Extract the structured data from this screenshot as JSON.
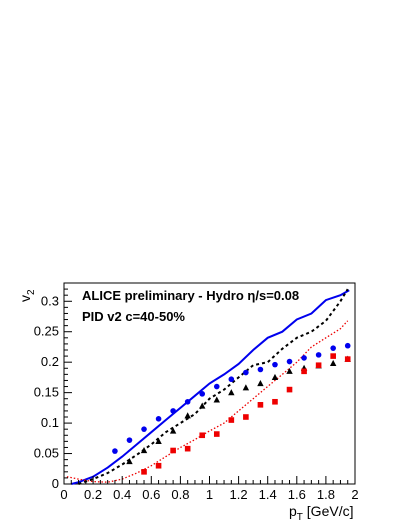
{
  "chart_data": {
    "type": "scatter",
    "title": "",
    "annotations": {
      "line1_prefix": "ALICE preliminary - Hydro ",
      "line1_symbol": "η",
      "line1_suffix": "/s=0.08",
      "line2": "PID v2 c=40-50%"
    },
    "xlabel": {
      "main": "p",
      "sub": "T",
      "unit": " [GeV/c]"
    },
    "ylabel": {
      "main": "v",
      "sub": "2"
    },
    "xlim": [
      0,
      2
    ],
    "ylim": [
      0,
      0.33
    ],
    "x_ticks": [
      0,
      0.2,
      0.4,
      0.6,
      0.8,
      1,
      1.2,
      1.4,
      1.6,
      1.8,
      2
    ],
    "x_tick_labels": [
      "0",
      "0.2",
      "0.4",
      "0.6",
      "0.8",
      "1",
      "1.2",
      "1.4",
      "1.6",
      "1.8",
      "2"
    ],
    "y_ticks": [
      0,
      0.05,
      0.1,
      0.15,
      0.2,
      0.25,
      0.3
    ],
    "y_tick_labels": [
      "0",
      "0.05",
      "0.1",
      "0.15",
      "0.2",
      "0.25",
      "0.3"
    ],
    "grid": false,
    "colors": {
      "blue": "#0000ee",
      "red": "#ee0000",
      "black": "#000000"
    },
    "points": [
      {
        "marker": "circle",
        "color": "#0000ee",
        "x": [
          0.35,
          0.45,
          0.55,
          0.65,
          0.75,
          0.85,
          0.95,
          1.05,
          1.15,
          1.25,
          1.35,
          1.45,
          1.55,
          1.65,
          1.75,
          1.85,
          1.95
        ],
        "y": [
          0.054,
          0.072,
          0.09,
          0.107,
          0.12,
          0.135,
          0.148,
          0.16,
          0.172,
          0.183,
          0.188,
          0.196,
          0.201,
          0.207,
          0.212,
          0.223,
          0.227
        ]
      },
      {
        "marker": "triangle",
        "color": "#000000",
        "x": [
          0.45,
          0.55,
          0.65,
          0.75,
          0.85,
          0.95,
          1.05,
          1.15,
          1.25,
          1.35,
          1.45,
          1.55,
          1.65,
          1.75,
          1.85,
          1.95
        ],
        "y": [
          0.037,
          0.055,
          0.07,
          0.087,
          0.112,
          0.128,
          0.138,
          0.15,
          0.158,
          0.165,
          0.175,
          0.185,
          0.19,
          0.194,
          0.198,
          0.205
        ]
      },
      {
        "marker": "square",
        "color": "#ee0000",
        "x": [
          0.55,
          0.65,
          0.75,
          0.85,
          0.95,
          1.05,
          1.15,
          1.25,
          1.35,
          1.45,
          1.55,
          1.65,
          1.75,
          1.85,
          1.95
        ],
        "y": [
          0.02,
          0.03,
          0.055,
          0.058,
          0.08,
          0.082,
          0.105,
          0.11,
          0.13,
          0.135,
          0.155,
          0.185,
          0.195,
          0.21,
          0.205
        ]
      }
    ],
    "curves": [
      {
        "style": "solid",
        "color": "#0000ee",
        "x": [
          0.05,
          0.1,
          0.2,
          0.3,
          0.4,
          0.5,
          0.6,
          0.7,
          0.8,
          0.9,
          1.0,
          1.1,
          1.2,
          1.3,
          1.4,
          1.5,
          1.6,
          1.7,
          1.8,
          1.9,
          1.96
        ],
        "y": [
          0.0,
          0.003,
          0.012,
          0.027,
          0.045,
          0.065,
          0.085,
          0.105,
          0.125,
          0.145,
          0.165,
          0.18,
          0.197,
          0.22,
          0.24,
          0.25,
          0.27,
          0.28,
          0.302,
          0.31,
          0.318
        ]
      },
      {
        "style": "dashed",
        "color": "#000000",
        "x": [
          0.1,
          0.2,
          0.3,
          0.4,
          0.5,
          0.6,
          0.7,
          0.8,
          0.9,
          1.0,
          1.1,
          1.2,
          1.3,
          1.4,
          1.5,
          1.6,
          1.7,
          1.8,
          1.9,
          1.95
        ],
        "y": [
          0.0,
          0.008,
          0.018,
          0.032,
          0.048,
          0.065,
          0.085,
          0.1,
          0.115,
          0.14,
          0.155,
          0.175,
          0.195,
          0.2,
          0.222,
          0.24,
          0.25,
          0.268,
          0.3,
          0.32
        ]
      },
      {
        "style": "dotted",
        "color": "#ee0000",
        "x": [
          0.02,
          0.1,
          0.2,
          0.3,
          0.4,
          0.5,
          0.6,
          0.7,
          0.8,
          0.9,
          1.0,
          1.1,
          1.2,
          1.3,
          1.4,
          1.5,
          1.6,
          1.7,
          1.8,
          1.9,
          1.95
        ],
        "y": [
          0.012,
          0.008,
          0.004,
          0.003,
          0.008,
          0.018,
          0.03,
          0.045,
          0.06,
          0.073,
          0.087,
          0.1,
          0.12,
          0.14,
          0.16,
          0.18,
          0.2,
          0.225,
          0.24,
          0.255,
          0.268
        ]
      }
    ]
  }
}
